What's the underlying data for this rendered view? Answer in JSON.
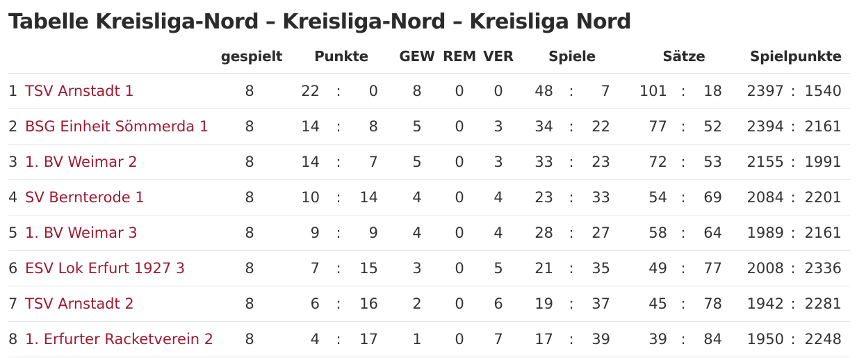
{
  "title": "Tabelle Kreisliga-Nord – Kreisliga-Nord – Kreisliga Nord",
  "link_color": "#9e1b32",
  "headers": {
    "gespielt": "gespielt",
    "punkte": "Punkte",
    "gew": "GEW",
    "rem": "REM",
    "ver": "VER",
    "spiele": "Spiele",
    "saetze": "Sätze",
    "spielpunkte": "Spielpunkte"
  },
  "rows": [
    {
      "rank": "1",
      "team": "TSV Arnstadt 1",
      "played": "8",
      "pts_for": "22",
      "pts_against": "0",
      "gew": "8",
      "rem": "0",
      "ver": "0",
      "sp_for": "48",
      "sp_against": "7",
      "s_for": "101",
      "s_against": "18",
      "spp_for": "2397",
      "spp_against": "1540"
    },
    {
      "rank": "2",
      "team": "BSG Einheit Sömmerda 1",
      "played": "8",
      "pts_for": "14",
      "pts_against": "8",
      "gew": "5",
      "rem": "0",
      "ver": "3",
      "sp_for": "34",
      "sp_against": "22",
      "s_for": "77",
      "s_against": "52",
      "spp_for": "2394",
      "spp_against": "2161"
    },
    {
      "rank": "3",
      "team": "1. BV Weimar 2",
      "played": "8",
      "pts_for": "14",
      "pts_against": "7",
      "gew": "5",
      "rem": "0",
      "ver": "3",
      "sp_for": "33",
      "sp_against": "23",
      "s_for": "72",
      "s_against": "53",
      "spp_for": "2155",
      "spp_against": "1991"
    },
    {
      "rank": "4",
      "team": "SV Bernterode 1",
      "played": "8",
      "pts_for": "10",
      "pts_against": "14",
      "gew": "4",
      "rem": "0",
      "ver": "4",
      "sp_for": "23",
      "sp_against": "33",
      "s_for": "54",
      "s_against": "69",
      "spp_for": "2084",
      "spp_against": "2201"
    },
    {
      "rank": "5",
      "team": "1. BV Weimar 3",
      "played": "8",
      "pts_for": "9",
      "pts_against": "9",
      "gew": "4",
      "rem": "0",
      "ver": "4",
      "sp_for": "28",
      "sp_against": "27",
      "s_for": "58",
      "s_against": "64",
      "spp_for": "1989",
      "spp_against": "2161"
    },
    {
      "rank": "6",
      "team": "ESV Lok Erfurt 1927 3",
      "played": "8",
      "pts_for": "7",
      "pts_against": "15",
      "gew": "3",
      "rem": "0",
      "ver": "5",
      "sp_for": "21",
      "sp_against": "35",
      "s_for": "49",
      "s_against": "77",
      "spp_for": "2008",
      "spp_against": "2336"
    },
    {
      "rank": "7",
      "team": "TSV Arnstadt 2",
      "played": "8",
      "pts_for": "6",
      "pts_against": "16",
      "gew": "2",
      "rem": "0",
      "ver": "6",
      "sp_for": "19",
      "sp_against": "37",
      "s_for": "45",
      "s_against": "78",
      "spp_for": "1942",
      "spp_against": "2281"
    },
    {
      "rank": "8",
      "team": "1. Erfurter Racketverein 2",
      "played": "8",
      "pts_for": "4",
      "pts_against": "17",
      "gew": "1",
      "rem": "0",
      "ver": "7",
      "sp_for": "17",
      "sp_against": "39",
      "s_for": "39",
      "s_against": "84",
      "spp_for": "1950",
      "spp_against": "2248"
    }
  ]
}
